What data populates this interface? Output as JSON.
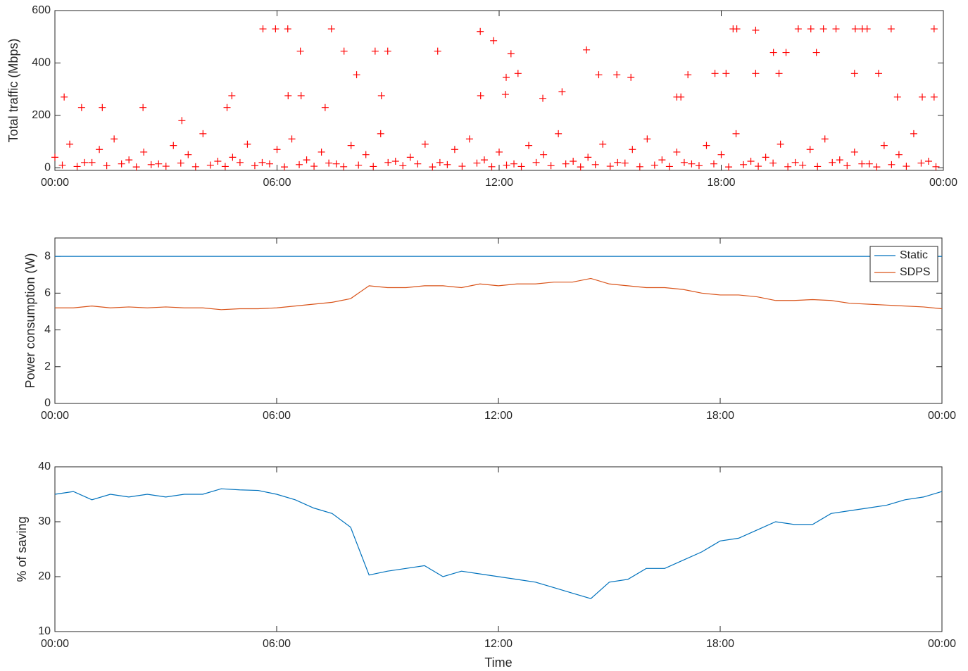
{
  "chart_data": [
    {
      "type": "scatter",
      "ylabel": "Total traffic (Mbps)",
      "color": "#ff0000",
      "xlim": [
        0,
        24
      ],
      "ylim": [
        -10,
        600
      ],
      "yticks": [
        0,
        200,
        400,
        600
      ],
      "xticks": [
        {
          "value": 0,
          "label": "00:00"
        },
        {
          "value": 6,
          "label": "06:00"
        },
        {
          "value": 12,
          "label": "12:00"
        },
        {
          "value": 18,
          "label": "18:00"
        },
        {
          "value": 24,
          "label": "00:00"
        }
      ],
      "x": [
        0.25,
        0.72,
        1.28,
        2.38,
        3.43,
        4.65,
        4.78,
        5.62,
        5.96,
        6.29,
        6.3,
        6.63,
        6.65,
        7.3,
        7.47,
        7.81,
        8.15,
        8.65,
        8.99,
        8.82,
        10.34,
        11.49,
        11.85,
        11.5,
        12.19,
        12.32,
        12.51,
        12.17,
        13.18,
        13.7,
        14.36,
        14.69,
        15.18,
        15.56,
        17.1,
        16.91,
        16.8,
        17.83,
        18.13,
        18.42,
        18.32,
        18.93,
        18.93,
        19.41,
        19.75,
        19.56,
        20.08,
        20.42,
        20.76,
        21.1,
        20.57,
        21.62,
        21.81,
        21.94,
        22.59,
        21.6,
        22.25,
        22.76,
        23.43,
        23.75,
        23.75,
        0,
        0.4,
        0.8,
        1.2,
        1.6,
        2,
        2.4,
        2.8,
        3.2,
        3.6,
        4,
        4.4,
        4.8,
        5.2,
        5.6,
        6,
        6.4,
        6.8,
        7.2,
        7.6,
        8,
        8.4,
        8.8,
        9.2,
        9.6,
        10,
        10.4,
        10.8,
        11.2,
        11.6,
        12,
        12.4,
        12.8,
        13.2,
        13.6,
        14,
        14.4,
        14.8,
        15.2,
        15.6,
        16,
        16.4,
        16.8,
        17.2,
        17.6,
        18,
        18.4,
        18.8,
        19.2,
        19.6,
        20,
        20.4,
        20.8,
        21.2,
        21.6,
        22,
        22.4,
        22.8,
        23.2,
        23.6,
        0.2,
        0.6,
        1,
        1.4,
        1.8,
        2.2,
        2.6,
        3,
        3.4,
        3.8,
        4.2,
        4.6,
        5,
        5.4,
        5.8,
        6.2,
        6.6,
        7,
        7.4,
        7.8,
        8.2,
        8.6,
        9,
        9.4,
        9.8,
        10.2,
        10.6,
        11,
        11.4,
        11.8,
        12.2,
        12.6,
        13,
        13.4,
        13.8,
        14.2,
        14.6,
        15,
        15.4,
        15.8,
        16.2,
        16.6,
        17,
        17.4,
        17.8,
        18.2,
        18.6,
        19,
        19.4,
        19.8,
        20.2,
        20.6,
        21,
        21.4,
        21.8,
        22.2,
        22.6,
        23,
        23.4,
        23.8
      ],
      "values": [
        270,
        230,
        230,
        230,
        180,
        230,
        275,
        530,
        530,
        530,
        275,
        445,
        275,
        230,
        530,
        445,
        355,
        445,
        445,
        275,
        445,
        520,
        485,
        275,
        345,
        435,
        360,
        280,
        265,
        290,
        450,
        355,
        355,
        345,
        355,
        270,
        270,
        360,
        360,
        530,
        530,
        525,
        360,
        440,
        440,
        360,
        530,
        530,
        530,
        530,
        440,
        530,
        530,
        530,
        530,
        360,
        360,
        270,
        270,
        530,
        270,
        40,
        90,
        20,
        70,
        110,
        30,
        60,
        15,
        85,
        50,
        130,
        25,
        40,
        90,
        20,
        70,
        110,
        30,
        60,
        15,
        85,
        50,
        130,
        25,
        40,
        90,
        20,
        70,
        110,
        30,
        60,
        15,
        85,
        50,
        130,
        25,
        40,
        90,
        20,
        70,
        110,
        30,
        60,
        15,
        85,
        50,
        130,
        25,
        40,
        90,
        20,
        70,
        110,
        30,
        60,
        15,
        85,
        50,
        130,
        25,
        10,
        5,
        20,
        8,
        15,
        3,
        12,
        6,
        18,
        4,
        10,
        5,
        20,
        8,
        15,
        3,
        12,
        6,
        18,
        4,
        10,
        5,
        20,
        8,
        15,
        3,
        12,
        6,
        18,
        4,
        10,
        5,
        20,
        8,
        15,
        3,
        12,
        6,
        18,
        4,
        10,
        5,
        20,
        8,
        15,
        3,
        12,
        6,
        18,
        4,
        10,
        5,
        20,
        8,
        15,
        3,
        12,
        6,
        18,
        4
      ]
    },
    {
      "type": "line",
      "ylabel": "Power consumption (W)",
      "legend": "northeast",
      "xlim": [
        0,
        24
      ],
      "ylim": [
        0,
        9
      ],
      "yticks": [
        0,
        2,
        4,
        6,
        8
      ],
      "xticks": [
        {
          "value": 0,
          "label": "00:00"
        },
        {
          "value": 6,
          "label": "06:00"
        },
        {
          "value": 12,
          "label": "12:00"
        },
        {
          "value": 18,
          "label": "18:00"
        },
        {
          "value": 24,
          "label": "00:00"
        }
      ],
      "x": [
        0,
        0.5,
        1,
        1.5,
        2,
        2.5,
        3,
        3.5,
        4,
        4.5,
        5,
        5.5,
        6,
        6.5,
        7,
        7.5,
        8,
        8.5,
        9,
        9.5,
        10,
        10.5,
        11,
        11.5,
        12,
        12.5,
        13,
        13.5,
        14,
        14.5,
        15,
        15.5,
        16,
        16.5,
        17,
        17.5,
        18,
        18.5,
        19,
        19.5,
        20,
        20.5,
        21,
        21.5,
        22,
        22.5,
        23,
        23.5,
        24
      ],
      "series": [
        {
          "name": "Static",
          "color": "#0072bd",
          "values": [
            8,
            8,
            8,
            8,
            8,
            8,
            8,
            8,
            8,
            8,
            8,
            8,
            8,
            8,
            8,
            8,
            8,
            8,
            8,
            8,
            8,
            8,
            8,
            8,
            8,
            8,
            8,
            8,
            8,
            8,
            8,
            8,
            8,
            8,
            8,
            8,
            8,
            8,
            8,
            8,
            8,
            8,
            8,
            8,
            8,
            8,
            8,
            8,
            8
          ]
        },
        {
          "name": "SDPS",
          "color": "#d95319",
          "values": [
            5.2,
            5.2,
            5.3,
            5.2,
            5.25,
            5.2,
            5.25,
            5.2,
            5.2,
            5.1,
            5.15,
            5.15,
            5.2,
            5.3,
            5.4,
            5.5,
            5.7,
            6.4,
            6.3,
            6.3,
            6.4,
            6.4,
            6.3,
            6.5,
            6.4,
            6.5,
            6.5,
            6.6,
            6.6,
            6.8,
            6.5,
            6.4,
            6.3,
            6.3,
            6.2,
            6.0,
            5.9,
            5.9,
            5.8,
            5.6,
            5.6,
            5.65,
            5.6,
            5.45,
            5.4,
            5.35,
            5.3,
            5.25,
            5.15
          ]
        }
      ]
    },
    {
      "type": "line",
      "ylabel": "% of saving",
      "xlabel": "Time",
      "xlim": [
        0,
        24
      ],
      "ylim": [
        10,
        40
      ],
      "yticks": [
        10,
        20,
        30,
        40
      ],
      "xticks": [
        {
          "value": 0,
          "label": "00:00"
        },
        {
          "value": 6,
          "label": "06:00"
        },
        {
          "value": 12,
          "label": "12:00"
        },
        {
          "value": 18,
          "label": "18:00"
        },
        {
          "value": 24,
          "label": "00:00"
        }
      ],
      "x": [
        0,
        0.5,
        1,
        1.5,
        2,
        2.5,
        3,
        3.5,
        4,
        4.5,
        5,
        5.5,
        6,
        6.5,
        7,
        7.5,
        8,
        8.5,
        9,
        9.5,
        10,
        10.5,
        11,
        11.5,
        12,
        12.5,
        13,
        13.5,
        14,
        14.5,
        15,
        15.5,
        16,
        16.5,
        17,
        17.5,
        18,
        18.5,
        19,
        19.5,
        20,
        20.5,
        21,
        21.5,
        22,
        22.5,
        23,
        23.5,
        24
      ],
      "series": [
        {
          "color": "#0072bd",
          "values": [
            35,
            35.5,
            34,
            35,
            34.5,
            35,
            34.5,
            35,
            35,
            36,
            35.8,
            35.7,
            35,
            34,
            32.5,
            31.5,
            29,
            20.3,
            21,
            21.5,
            22,
            20,
            21,
            20.5,
            20,
            19.5,
            19,
            18,
            17,
            16,
            19,
            19.5,
            21.5,
            21.5,
            23,
            24.5,
            26.5,
            27,
            28.5,
            30,
            29.5,
            29.5,
            31.5,
            32,
            32.5,
            33,
            34,
            34.5,
            35.5
          ]
        }
      ]
    }
  ]
}
